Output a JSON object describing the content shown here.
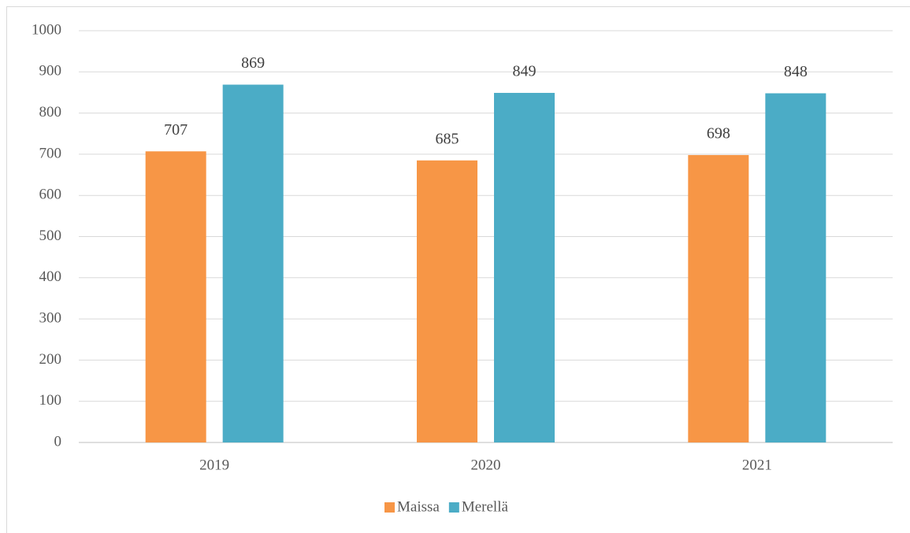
{
  "chart_data": {
    "type": "bar",
    "categories": [
      "2019",
      "2020",
      "2021"
    ],
    "series": [
      {
        "name": "Maissa",
        "color": "#f79646",
        "values": [
          707,
          685,
          698
        ]
      },
      {
        "name": "Merellä",
        "color": "#4bacc6",
        "values": [
          869,
          849,
          848
        ]
      }
    ],
    "ylim": [
      0,
      1000
    ],
    "yticks": [
      0,
      100,
      200,
      300,
      400,
      500,
      600,
      700,
      800,
      900,
      1000
    ],
    "grid": true,
    "legend": "bottom",
    "data_labels": true
  }
}
